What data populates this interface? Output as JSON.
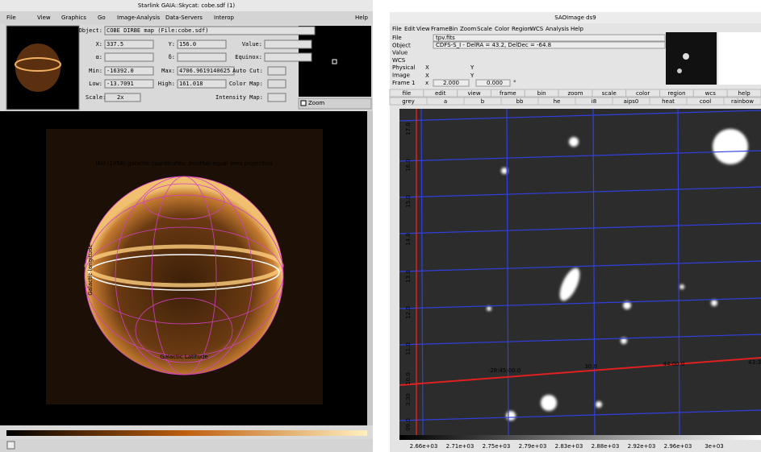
{
  "left_window": {
    "title": "Starlink GAIA::Skycat: cobe.sdf (1)",
    "menu": [
      "File",
      "View",
      "Graphics",
      "Go",
      "Image-Analysis",
      "Data-Servers",
      "Interop",
      "Help"
    ],
    "fields": [
      {
        "label": "Object:",
        "value": "COBE DIRBE map (File:cobe.sdf)"
      },
      {
        "label": "X:",
        "value": "337.5"
      },
      {
        "label": "Y:",
        "value": "156.0"
      },
      {
        "label": "Value:",
        "value": ""
      },
      {
        "label": "α:",
        "value": ""
      },
      {
        "label": "δ:",
        "value": ""
      },
      {
        "label": "Equinox:",
        "value": ""
      },
      {
        "label": "Min:",
        "value": "-16392.0"
      },
      {
        "label": "Max:",
        "value": "4706.9619140625"
      },
      {
        "label": "Low:",
        "value": "-13.7091"
      },
      {
        "label": "High:",
        "value": "161.018"
      }
    ],
    "option_labels": [
      "Auto Cut:",
      "Color Map:",
      "Intensity Map:"
    ],
    "scale_label": "Scale:",
    "scale_value": "2x",
    "zoom_label": "Zoom",
    "image_title": "IAU (1958) galactic coordinates: zenithal equal area projection",
    "x_axis_label": "Galactic Latitude",
    "y_axis_label": "Galactic longitude"
  },
  "right_window": {
    "title": "SAOImage ds9",
    "menu": [
      "File",
      "Edit",
      "View",
      "Frame",
      "Bin",
      "Zoom",
      "Scale",
      "Color",
      "Region",
      "WCS",
      "Analysis",
      "Help"
    ],
    "info_labels": [
      "File",
      "Object",
      "Value",
      "WCS",
      "Physical",
      "Image",
      "Frame 1"
    ],
    "file_value": "tpv.fits",
    "object_value": "CDFS-S_I - DelRA =  43.2, DelDec = -64.8",
    "coord_letters": [
      "X",
      "Y",
      "X",
      "Y"
    ],
    "frame_x": "x",
    "zoom_value": "2.000",
    "angle_value": "0.000",
    "angle_unit": "°",
    "buttons": [
      "file",
      "edit",
      "view",
      "frame",
      "bin",
      "zoom",
      "scale",
      "color",
      "region",
      "wcs",
      "help"
    ],
    "colormaps": [
      "grey",
      "a",
      "b",
      "bb",
      "he",
      "i8",
      "aips0",
      "heat",
      "cool",
      "rainbow"
    ],
    "dec_labels": [
      "17.0",
      "16.0",
      "15.0",
      "14.0",
      "13.0",
      "12.0",
      "11.0",
      "10.0",
      "3:30",
      "09.0"
    ],
    "ra_labels": [
      "-28:45:00.0",
      "30.0",
      "44:00.0",
      "43:3"
    ],
    "colorbar_labels": [
      "2.66e+03",
      "2.71e+03",
      "2.75e+03",
      "2.79e+03",
      "2.83e+03",
      "2.88e+03",
      "2.92e+03",
      "2.96e+03",
      "3e+03"
    ]
  }
}
